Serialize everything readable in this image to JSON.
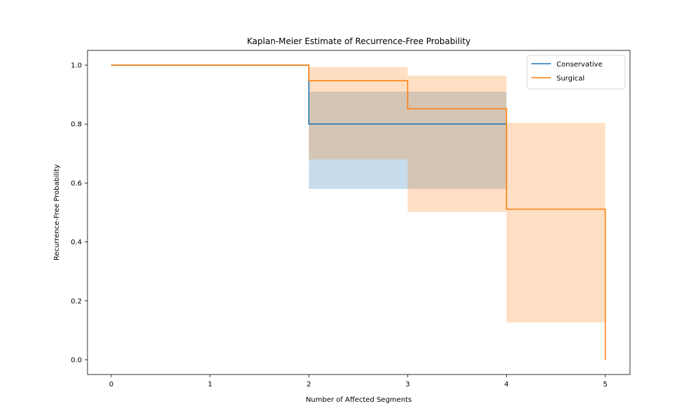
{
  "chart_data": {
    "type": "line",
    "subtype": "step",
    "title": "Kaplan-Meier Estimate of Recurrence-Free Probability",
    "xlabel": "Number of Affected Segments",
    "ylabel": "Recurrence-Free Probability",
    "xlim": [
      -0.24,
      5.25
    ],
    "ylim": [
      -0.05,
      1.05
    ],
    "xticks": [
      0,
      1,
      2,
      3,
      4,
      5
    ],
    "yticks": [
      0.0,
      0.2,
      0.4,
      0.6,
      0.8,
      1.0
    ],
    "xtick_labels": [
      "0",
      "1",
      "2",
      "3",
      "4",
      "5"
    ],
    "ytick_labels": [
      "0.0",
      "0.2",
      "0.4",
      "0.6",
      "0.8",
      "1.0"
    ],
    "grid": false,
    "legend": {
      "placement": "top-right"
    },
    "series": [
      {
        "name": "Conservative",
        "color": "#1f77b4",
        "x": [
          0,
          2,
          4
        ],
        "y": [
          1.0,
          0.8,
          0.8
        ],
        "ci_lower": [
          1.0,
          0.58,
          0.58
        ],
        "ci_upper": [
          1.0,
          0.91,
          0.91
        ],
        "ci_steps": [
          {
            "x0": 2,
            "x1": 3,
            "lower": 0.58,
            "upper": 0.91
          },
          {
            "x0": 3,
            "x1": 4,
            "lower": 0.58,
            "upper": 0.91
          }
        ]
      },
      {
        "name": "Surgical",
        "color": "#ff7f0e",
        "x": [
          0,
          2,
          3,
          4,
          5
        ],
        "y": [
          1.0,
          0.947,
          0.852,
          0.511,
          0.0
        ],
        "ci_steps": [
          {
            "x0": 2,
            "x1": 3,
            "lower": 0.68,
            "upper": 0.993
          },
          {
            "x0": 3,
            "x1": 4,
            "lower": 0.502,
            "upper": 0.964
          },
          {
            "x0": 4,
            "x1": 5,
            "lower": 0.127,
            "upper": 0.804
          }
        ]
      }
    ]
  }
}
